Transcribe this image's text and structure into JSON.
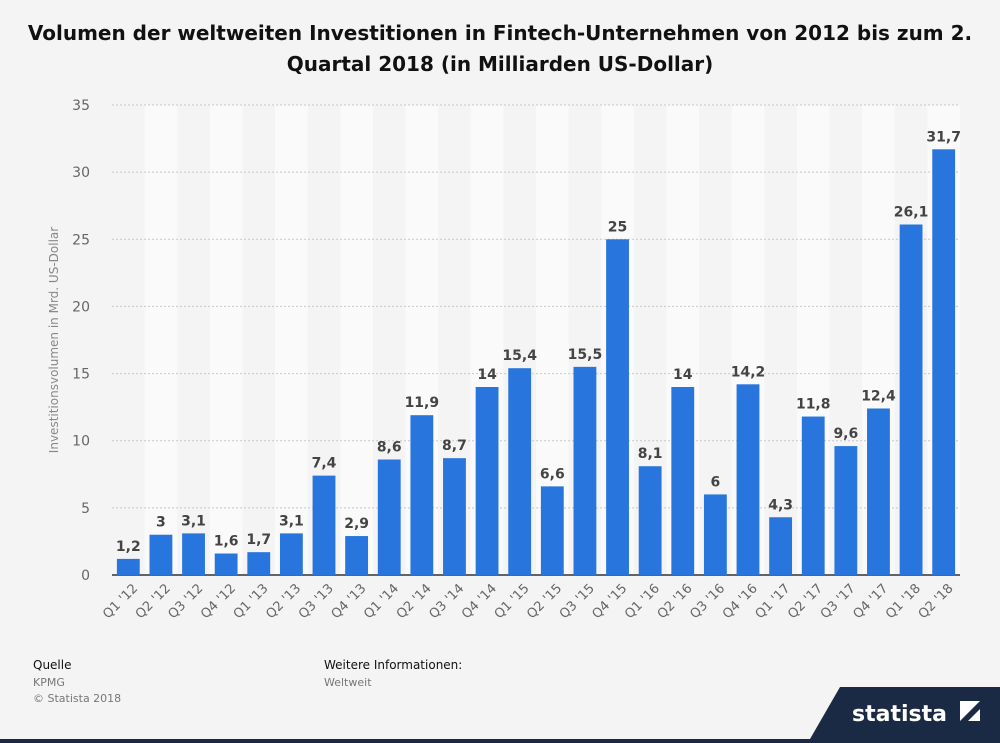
{
  "title": "Volumen der weltweiten Investitionen in Fintech-Unternehmen von 2012 bis zum 2. Quartal 2018 (in Milliarden US-Dollar)",
  "footer": {
    "source_heading": "Quelle",
    "source": "KPMG",
    "copyright": "© Statista 2018",
    "info_heading": "Weitere Informationen:",
    "info": "Weltweit",
    "brand": "statista"
  },
  "colors": {
    "bar": "#2775dd",
    "background": "#f4f4f4",
    "band": "#fafafa",
    "logo_bg": "#1b2a44"
  },
  "chart_data": {
    "type": "bar",
    "title": "Volumen der weltweiten Investitionen in Fintech-Unternehmen von 2012 bis zum 2. Quartal 2018 (in Milliarden US-Dollar)",
    "xlabel": "",
    "ylabel": "Investitionsvolumen in Mrd. US-Dollar",
    "ylim": [
      0,
      35
    ],
    "yticks": [
      0,
      5,
      10,
      15,
      20,
      25,
      30,
      35
    ],
    "grid": true,
    "categories": [
      "Q1 '12",
      "Q2 '12",
      "Q3 '12",
      "Q4 '12",
      "Q1 '13",
      "Q2 '13",
      "Q3 '13",
      "Q4 '13",
      "Q1 '14",
      "Q2 '14",
      "Q3 '14",
      "Q4 '14",
      "Q1 '15",
      "Q2 '15",
      "Q3 '15",
      "Q4 '15",
      "Q1 '16",
      "Q2 '16",
      "Q3 '16",
      "Q4 '16",
      "Q1 '17",
      "Q2 '17",
      "Q3 '17",
      "Q4 '17",
      "Q1 '18",
      "Q2 '18"
    ],
    "values": [
      1.2,
      3,
      3.1,
      1.6,
      1.7,
      3.1,
      7.4,
      2.9,
      8.6,
      11.9,
      8.7,
      14,
      15.4,
      6.6,
      15.5,
      25,
      8.1,
      14,
      6,
      14.2,
      4.3,
      11.8,
      9.6,
      12.4,
      26.1,
      31.7
    ],
    "value_labels": [
      "1,2",
      "3",
      "3,1",
      "1,6",
      "1,7",
      "3,1",
      "7,4",
      "2,9",
      "8,6",
      "11,9",
      "8,7",
      "14",
      "15,4",
      "6,6",
      "15,5",
      "25",
      "8,1",
      "14",
      "6",
      "14,2",
      "4,3",
      "11,8",
      "9,6",
      "12,4",
      "26,1",
      "31,7"
    ]
  }
}
